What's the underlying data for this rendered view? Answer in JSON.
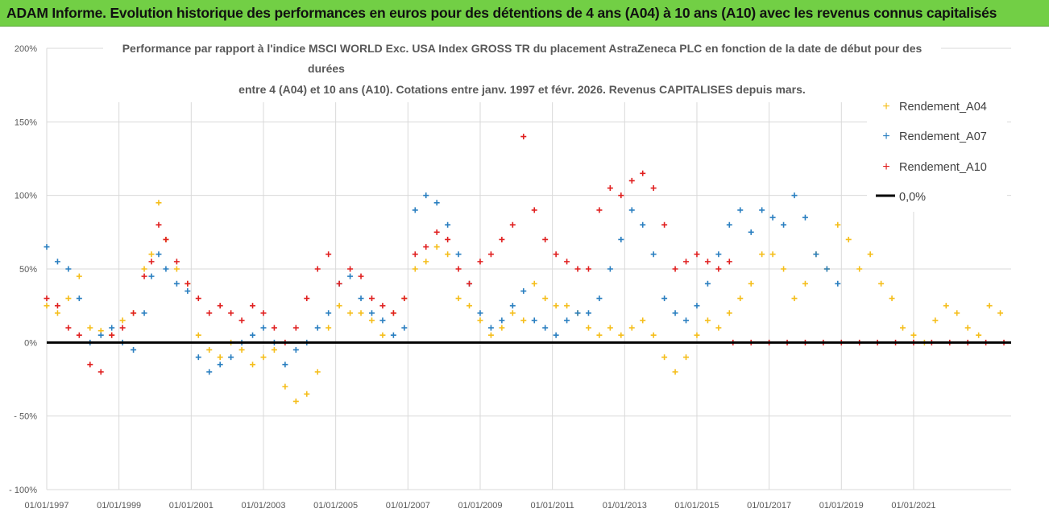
{
  "banner": {
    "text": "ADAM Informe. Evolution historique des performances en euros pour des détentions de 4 ans (A04) à 10 ans (A10) avec les revenus connus capitalisés"
  },
  "chart_data": {
    "type": "scatter",
    "title_lines": [
      "Performance par rapport à l'indice MSCI WORLD Exc. USA Index GROSS TR  du placement AstraZeneca PLC en fonction de la date de début pour des",
      "durées",
      "entre 4 (A04) et 10 ans (A10). Cotations entre janv. 1997 et févr. 2026. Revenus CAPITALISES depuis mars."
    ],
    "x_range": [
      1997.0,
      2023.7
    ],
    "ylim": [
      -100,
      200
    ],
    "y_ticks": [
      {
        "value": 200,
        "label": "200%"
      },
      {
        "value": 150,
        "label": "150%"
      },
      {
        "value": 100,
        "label": "100%"
      },
      {
        "value": 50,
        "label": "50%"
      },
      {
        "value": 0,
        "label": "0%"
      },
      {
        "value": -50,
        "label": "- 50%"
      },
      {
        "value": -100,
        "label": "- 100%"
      }
    ],
    "x_ticks": [
      {
        "value": 1997,
        "label": "01/01/1997"
      },
      {
        "value": 1999,
        "label": "01/01/1999"
      },
      {
        "value": 2001,
        "label": "01/01/2001"
      },
      {
        "value": 2003,
        "label": "01/01/2003"
      },
      {
        "value": 2005,
        "label": "01/01/2005"
      },
      {
        "value": 2007,
        "label": "01/01/2007"
      },
      {
        "value": 2009,
        "label": "01/01/2009"
      },
      {
        "value": 2011,
        "label": "01/01/2011"
      },
      {
        "value": 2013,
        "label": "01/01/2013"
      },
      {
        "value": 2015,
        "label": "01/01/2015"
      },
      {
        "value": 2017,
        "label": "01/01/2017"
      },
      {
        "value": 2019,
        "label": "01/01/2019"
      },
      {
        "value": 2021,
        "label": "01/01/2021"
      }
    ],
    "series": [
      {
        "name": "Rendement_A04",
        "color": "#f5be1b",
        "x": [
          1997.0,
          1997.3,
          1997.6,
          1997.9,
          1998.2,
          1998.5,
          1998.8,
          1999.1,
          1999.4,
          1999.7,
          1999.9,
          2000.1,
          2000.3,
          2000.6,
          2000.9,
          2001.2,
          2001.5,
          2001.8,
          2002.1,
          2002.4,
          2002.7,
          2003.0,
          2003.3,
          2003.6,
          2003.9,
          2004.2,
          2004.5,
          2004.8,
          2005.1,
          2005.4,
          2005.7,
          2006.0,
          2006.3,
          2006.6,
          2006.9,
          2007.2,
          2007.5,
          2007.8,
          2008.1,
          2008.4,
          2008.7,
          2009.0,
          2009.3,
          2009.6,
          2009.9,
          2010.2,
          2010.5,
          2010.8,
          2011.1,
          2011.4,
          2011.7,
          2012.0,
          2012.3,
          2012.6,
          2012.9,
          2013.2,
          2013.5,
          2013.8,
          2014.1,
          2014.4,
          2014.7,
          2015.0,
          2015.3,
          2015.6,
          2015.9,
          2016.2,
          2016.5,
          2016.8,
          2017.1,
          2017.4,
          2017.7,
          2018.0,
          2018.3,
          2018.6,
          2018.9,
          2019.2,
          2019.5,
          2019.8,
          2020.1,
          2020.4,
          2020.7,
          2021.0,
          2021.3,
          2021.6,
          2021.9,
          2022.2,
          2022.5,
          2022.8,
          2023.1,
          2023.4
        ],
        "y": [
          25,
          20,
          30,
          45,
          10,
          8,
          5,
          15,
          20,
          50,
          60,
          95,
          70,
          50,
          40,
          5,
          -5,
          -10,
          0,
          -5,
          -15,
          -10,
          -5,
          -30,
          -40,
          -35,
          -20,
          10,
          25,
          20,
          20,
          15,
          5,
          20,
          30,
          50,
          55,
          65,
          60,
          30,
          25,
          15,
          5,
          10,
          20,
          15,
          40,
          30,
          25,
          25,
          20,
          10,
          5,
          10,
          5,
          10,
          15,
          5,
          -10,
          -20,
          -10,
          5,
          15,
          10,
          20,
          30,
          40,
          60,
          60,
          50,
          30,
          40,
          60,
          50,
          80,
          70,
          50,
          60,
          40,
          30,
          10,
          5,
          0,
          15,
          25,
          20,
          10,
          5,
          25,
          20
        ]
      },
      {
        "name": "Rendement_A07",
        "color": "#2a7fc0",
        "x": [
          1997.0,
          1997.3,
          1997.6,
          1997.9,
          1998.2,
          1998.5,
          1998.8,
          1999.1,
          1999.4,
          1999.7,
          1999.9,
          2000.1,
          2000.3,
          2000.6,
          2000.9,
          2001.2,
          2001.5,
          2001.8,
          2002.1,
          2002.4,
          2002.7,
          2003.0,
          2003.3,
          2003.6,
          2003.9,
          2004.2,
          2004.5,
          2004.8,
          2005.1,
          2005.4,
          2005.7,
          2006.0,
          2006.3,
          2006.6,
          2006.9,
          2007.2,
          2007.5,
          2007.8,
          2008.1,
          2008.4,
          2008.7,
          2009.0,
          2009.3,
          2009.6,
          2009.9,
          2010.2,
          2010.5,
          2010.8,
          2011.1,
          2011.4,
          2011.7,
          2012.0,
          2012.3,
          2012.6,
          2012.9,
          2013.2,
          2013.5,
          2013.8,
          2014.1,
          2014.4,
          2014.7,
          2015.0,
          2015.3,
          2015.6,
          2015.9,
          2016.2,
          2016.5,
          2016.8,
          2017.1,
          2017.4,
          2017.7,
          2018.0,
          2018.3,
          2018.6,
          2018.9
        ],
        "y": [
          65,
          55,
          50,
          30,
          0,
          5,
          10,
          0,
          -5,
          20,
          45,
          60,
          50,
          40,
          35,
          -10,
          -20,
          -15,
          -10,
          0,
          5,
          10,
          0,
          -15,
          -5,
          0,
          10,
          20,
          40,
          45,
          30,
          20,
          15,
          5,
          10,
          90,
          100,
          95,
          80,
          60,
          40,
          20,
          10,
          15,
          25,
          35,
          15,
          10,
          5,
          15,
          20,
          20,
          30,
          50,
          70,
          90,
          80,
          60,
          30,
          20,
          15,
          25,
          40,
          60,
          80,
          90,
          75,
          90,
          85,
          80,
          100,
          85,
          60,
          50,
          40
        ]
      },
      {
        "name": "Rendement_A10",
        "color": "#e02020",
        "x": [
          1997.0,
          1997.3,
          1997.6,
          1997.9,
          1998.2,
          1998.5,
          1998.8,
          1999.1,
          1999.4,
          1999.7,
          1999.9,
          2000.1,
          2000.3,
          2000.6,
          2000.9,
          2001.2,
          2001.5,
          2001.8,
          2002.1,
          2002.4,
          2002.7,
          2003.0,
          2003.3,
          2003.6,
          2003.9,
          2004.2,
          2004.5,
          2004.8,
          2005.1,
          2005.4,
          2005.7,
          2006.0,
          2006.3,
          2006.6,
          2006.9,
          2007.2,
          2007.5,
          2007.8,
          2008.1,
          2008.4,
          2008.7,
          2009.0,
          2009.3,
          2009.6,
          2009.9,
          2010.2,
          2010.5,
          2010.8,
          2011.1,
          2011.4,
          2011.7,
          2012.0,
          2012.3,
          2012.6,
          2012.9,
          2013.2,
          2013.5,
          2013.8,
          2014.1,
          2014.4,
          2014.7,
          2015.0,
          2015.3,
          2015.6,
          2015.9,
          2016.0,
          2016.5,
          2017.0,
          2017.5,
          2018.0,
          2018.5,
          2019.0,
          2019.5,
          2020.0,
          2020.5,
          2021.0,
          2021.5,
          2022.0,
          2022.5,
          2023.0,
          2023.5
        ],
        "y": [
          30,
          25,
          10,
          5,
          -15,
          -20,
          5,
          10,
          20,
          45,
          55,
          80,
          70,
          55,
          40,
          30,
          20,
          25,
          20,
          15,
          25,
          20,
          10,
          0,
          10,
          30,
          50,
          60,
          40,
          50,
          45,
          30,
          25,
          20,
          30,
          60,
          65,
          75,
          70,
          50,
          40,
          55,
          60,
          70,
          80,
          140,
          90,
          70,
          60,
          55,
          50,
          50,
          90,
          105,
          100,
          110,
          115,
          105,
          80,
          50,
          55,
          60,
          55,
          50,
          55,
          0,
          0,
          0,
          0,
          0,
          0,
          0,
          0,
          0,
          0,
          0,
          0,
          0,
          0,
          0,
          0
        ]
      }
    ],
    "reference_line": {
      "label": "0,0%",
      "value": 0,
      "color": "#000000"
    },
    "legend": [
      "Rendement_A04",
      "Rendement_A07",
      "Rendement_A10",
      "0,0%"
    ],
    "legend_position": "top-right"
  }
}
